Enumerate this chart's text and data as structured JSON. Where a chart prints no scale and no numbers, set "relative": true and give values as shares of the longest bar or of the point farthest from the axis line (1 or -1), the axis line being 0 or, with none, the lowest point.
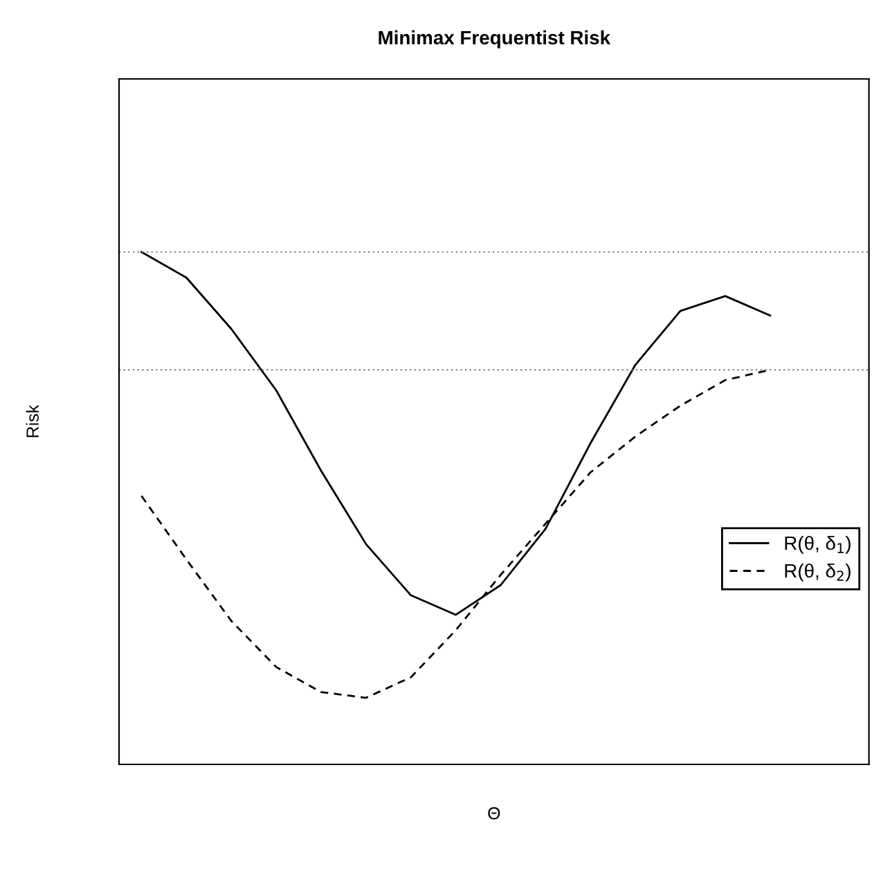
{
  "chart_data": {
    "type": "line",
    "title": "Minimax Frequentist Risk",
    "xlabel": "Θ",
    "ylabel": "Risk",
    "relative": true,
    "tick_labels": false,
    "legend": "right",
    "categories": [
      null,
      null,
      null,
      null,
      null,
      null,
      null,
      null,
      null,
      null,
      null,
      null,
      null,
      null,
      null
    ],
    "series": [
      {
        "name": "R(θ, δ$_{1}$)",
        "color": "#000000",
        "line_style": "solid",
        "values": [
          1.0,
          0.95,
          0.85,
          0.73,
          0.573,
          0.43,
          0.33,
          0.292,
          0.35,
          0.46,
          0.627,
          0.78,
          0.885,
          0.914,
          0.876
        ]
      },
      {
        "name": "R(θ, δ$_{2}$)",
        "color": "#000000",
        "line_style": "dashed",
        "values": [
          0.524,
          0.4,
          0.28,
          0.19,
          0.141,
          0.13,
          0.17,
          0.262,
          0.37,
          0.47,
          0.57,
          0.64,
          0.7,
          0.75,
          0.77
        ]
      }
    ],
    "ref_lines": [
      {
        "axis": "y",
        "value": 1.0,
        "line_style": "dotted",
        "color": "#808080"
      },
      {
        "axis": "y",
        "value": 0.77,
        "line_style": "dotted",
        "color": "#808080"
      }
    ]
  }
}
